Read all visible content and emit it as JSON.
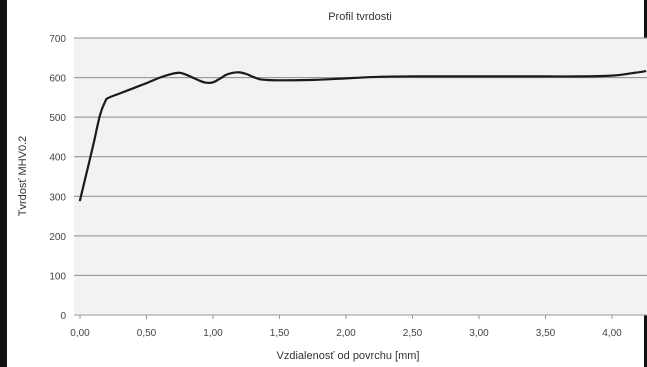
{
  "chart_data": {
    "type": "line",
    "title": "Profil tvrdosti",
    "xlabel": "Vzdialenosť od povrchu [mm]",
    "ylabel": "Tvrdosť MHV0.2",
    "xlim": [
      0,
      4.3
    ],
    "ylim": [
      0,
      700
    ],
    "x_ticks": [
      "0,00",
      "0,50",
      "1,00",
      "1,50",
      "2,00",
      "2,50",
      "3,00",
      "3,50",
      "4,00"
    ],
    "y_ticks": [
      "0",
      "100",
      "200",
      "300",
      "400",
      "500",
      "600",
      "700"
    ],
    "grid": "horizontal",
    "legend": "none",
    "series": [
      {
        "color": "#1a1a1a",
        "x": [
          0.0,
          0.05,
          0.1,
          0.15,
          0.19,
          0.21,
          0.3,
          0.4,
          0.5,
          0.6,
          0.7,
          0.75,
          0.8,
          0.9,
          0.95,
          1.0,
          1.05,
          1.1,
          1.15,
          1.2,
          1.25,
          1.3,
          1.35,
          1.4,
          1.5,
          1.75,
          2.0,
          2.25,
          2.5,
          2.75,
          3.0,
          3.25,
          3.5,
          3.75,
          4.0,
          4.15,
          4.25
        ],
        "y": [
          290,
          360,
          430,
          505,
          540,
          548,
          560,
          573,
          586,
          600,
          610,
          612,
          607,
          592,
          587,
          588,
          597,
          607,
          612,
          613,
          609,
          602,
          596,
          594,
          593,
          594,
          598,
          602,
          603,
          603,
          603,
          603,
          603,
          603,
          605,
          611,
          616
        ]
      }
    ]
  }
}
